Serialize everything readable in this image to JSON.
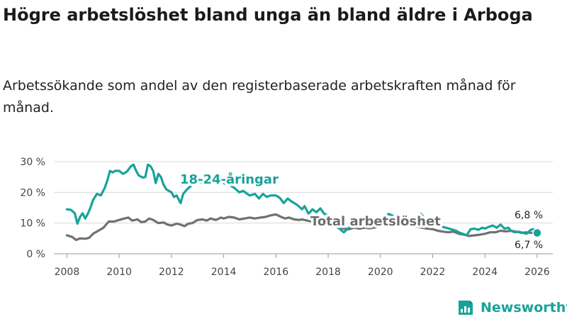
{
  "chart_data": {
    "type": "line",
    "title": "Högre arbetslöshet bland unga än bland äldre i Arboga",
    "subtitle": "Arbetssökande som andel av den registerbaserade arbetskraften månad för månad.",
    "xlabel": "",
    "ylabel": "",
    "xlim": [
      2007.5,
      2026.6
    ],
    "ylim": [
      0,
      33
    ],
    "x_ticks": [
      "2008",
      "2010",
      "2012",
      "2014",
      "2016",
      "2018",
      "2020",
      "2022",
      "2024",
      "2026"
    ],
    "y_ticks": [
      "0 %",
      "10 %",
      "20 %",
      "30 %"
    ],
    "series": [
      {
        "name": "18-24-åringar",
        "label": "18-24-åringar",
        "color": "#17a39a",
        "end_label": "6,8 %",
        "points": [
          [
            2008.0,
            14.5
          ],
          [
            2008.15,
            14.3
          ],
          [
            2008.3,
            13.2
          ],
          [
            2008.4,
            9.8
          ],
          [
            2008.5,
            12.0
          ],
          [
            2008.6,
            13.2
          ],
          [
            2008.7,
            11.5
          ],
          [
            2008.8,
            13.0
          ],
          [
            2008.9,
            15.0
          ],
          [
            2009.0,
            17.5
          ],
          [
            2009.15,
            19.5
          ],
          [
            2009.3,
            19.0
          ],
          [
            2009.45,
            21.5
          ],
          [
            2009.55,
            24.0
          ],
          [
            2009.65,
            27.0
          ],
          [
            2009.75,
            26.5
          ],
          [
            2009.85,
            27.0
          ],
          [
            2010.0,
            27.0
          ],
          [
            2010.15,
            26.0
          ],
          [
            2010.3,
            26.8
          ],
          [
            2010.45,
            28.5
          ],
          [
            2010.55,
            29.0
          ],
          [
            2010.65,
            27.0
          ],
          [
            2010.75,
            25.5
          ],
          [
            2010.9,
            24.8
          ],
          [
            2011.0,
            25.0
          ],
          [
            2011.1,
            29.0
          ],
          [
            2011.2,
            28.5
          ],
          [
            2011.3,
            27.0
          ],
          [
            2011.4,
            23.0
          ],
          [
            2011.5,
            26.0
          ],
          [
            2011.6,
            25.0
          ],
          [
            2011.7,
            22.5
          ],
          [
            2011.8,
            21.0
          ],
          [
            2011.9,
            20.5
          ],
          [
            2012.0,
            20.0
          ],
          [
            2012.1,
            18.5
          ],
          [
            2012.2,
            19.0
          ],
          [
            2012.35,
            16.5
          ],
          [
            2012.45,
            19.5
          ],
          [
            2012.6,
            21.0
          ],
          [
            2012.8,
            22.5
          ],
          [
            2013.0,
            23.5
          ],
          [
            2013.2,
            23.0
          ],
          [
            2013.35,
            25.0
          ],
          [
            2013.5,
            24.5
          ],
          [
            2013.65,
            24.0
          ],
          [
            2013.8,
            25.5
          ],
          [
            2014.0,
            23.0
          ],
          [
            2014.2,
            22.5
          ],
          [
            2014.4,
            21.5
          ],
          [
            2014.6,
            20.0
          ],
          [
            2014.75,
            20.5
          ],
          [
            2014.9,
            19.5
          ],
          [
            2015.0,
            19.0
          ],
          [
            2015.2,
            19.5
          ],
          [
            2015.35,
            18.0
          ],
          [
            2015.5,
            19.5
          ],
          [
            2015.65,
            18.5
          ],
          [
            2015.8,
            19.0
          ],
          [
            2016.0,
            19.0
          ],
          [
            2016.15,
            18.2
          ],
          [
            2016.3,
            16.5
          ],
          [
            2016.45,
            18.0
          ],
          [
            2016.6,
            17.0
          ],
          [
            2016.8,
            16.0
          ],
          [
            2017.0,
            14.5
          ],
          [
            2017.1,
            15.5
          ],
          [
            2017.25,
            13.0
          ],
          [
            2017.4,
            14.5
          ],
          [
            2017.55,
            13.5
          ],
          [
            2017.7,
            14.8
          ],
          [
            2017.85,
            13.0
          ],
          [
            2018.0,
            12.5
          ],
          [
            2018.15,
            11.0
          ],
          [
            2018.3,
            9.5
          ],
          [
            2018.45,
            8.0
          ],
          [
            2018.6,
            7.0
          ],
          [
            2018.8,
            8.5
          ],
          [
            2019.0,
            9.5
          ],
          [
            2019.2,
            10.0
          ],
          [
            2019.4,
            10.5
          ],
          [
            2019.6,
            9.8
          ],
          [
            2019.8,
            10.5
          ],
          [
            2020.0,
            11.0
          ],
          [
            2020.15,
            11.0
          ],
          [
            2020.3,
            13.0
          ],
          [
            2020.45,
            12.5
          ],
          [
            2020.6,
            11.0
          ],
          [
            2020.8,
            10.5
          ],
          [
            2021.0,
            11.5
          ],
          [
            2021.2,
            10.5
          ],
          [
            2021.4,
            11.0
          ],
          [
            2021.55,
            13.0
          ],
          [
            2021.7,
            11.5
          ],
          [
            2021.85,
            10.8
          ],
          [
            2022.0,
            10.0
          ],
          [
            2022.15,
            9.5
          ],
          [
            2022.3,
            9.0
          ],
          [
            2022.5,
            8.5
          ],
          [
            2022.7,
            8.0
          ],
          [
            2022.9,
            7.5
          ],
          [
            2023.0,
            7.0
          ],
          [
            2023.15,
            6.5
          ],
          [
            2023.3,
            6.0
          ],
          [
            2023.45,
            8.0
          ],
          [
            2023.6,
            8.2
          ],
          [
            2023.75,
            7.8
          ],
          [
            2023.9,
            8.5
          ],
          [
            2024.0,
            8.2
          ],
          [
            2024.15,
            8.8
          ],
          [
            2024.3,
            9.2
          ],
          [
            2024.45,
            8.5
          ],
          [
            2024.6,
            9.5
          ],
          [
            2024.75,
            8.2
          ],
          [
            2024.9,
            8.5
          ],
          [
            2025.0,
            7.5
          ],
          [
            2025.15,
            7.0
          ],
          [
            2025.3,
            7.2
          ],
          [
            2025.45,
            6.8
          ],
          [
            2025.6,
            6.5
          ],
          [
            2025.75,
            7.8
          ],
          [
            2025.85,
            8.0
          ],
          [
            2026.0,
            6.8
          ]
        ]
      },
      {
        "name": "Total arbetslöshet",
        "label": "Total arbetslöshet",
        "color": "#707070",
        "end_label": "6,7 %",
        "points": [
          [
            2008.0,
            6.0
          ],
          [
            2008.2,
            5.5
          ],
          [
            2008.35,
            4.5
          ],
          [
            2008.5,
            5.0
          ],
          [
            2008.7,
            4.9
          ],
          [
            2008.85,
            5.2
          ],
          [
            2009.0,
            6.5
          ],
          [
            2009.2,
            7.5
          ],
          [
            2009.4,
            8.5
          ],
          [
            2009.6,
            10.5
          ],
          [
            2009.8,
            10.5
          ],
          [
            2010.0,
            11.0
          ],
          [
            2010.2,
            11.5
          ],
          [
            2010.35,
            11.8
          ],
          [
            2010.5,
            10.8
          ],
          [
            2010.7,
            11.2
          ],
          [
            2010.85,
            10.3
          ],
          [
            2011.0,
            10.5
          ],
          [
            2011.15,
            11.5
          ],
          [
            2011.3,
            11.0
          ],
          [
            2011.5,
            10.0
          ],
          [
            2011.7,
            10.2
          ],
          [
            2011.85,
            9.5
          ],
          [
            2012.0,
            9.2
          ],
          [
            2012.2,
            9.8
          ],
          [
            2012.35,
            9.5
          ],
          [
            2012.5,
            9.0
          ],
          [
            2012.65,
            9.8
          ],
          [
            2012.8,
            10.0
          ],
          [
            2013.0,
            11.0
          ],
          [
            2013.2,
            11.2
          ],
          [
            2013.35,
            10.8
          ],
          [
            2013.5,
            11.5
          ],
          [
            2013.7,
            11.0
          ],
          [
            2013.9,
            11.8
          ],
          [
            2014.0,
            11.5
          ],
          [
            2014.2,
            12.0
          ],
          [
            2014.4,
            11.8
          ],
          [
            2014.6,
            11.2
          ],
          [
            2014.8,
            11.5
          ],
          [
            2015.0,
            11.8
          ],
          [
            2015.2,
            11.5
          ],
          [
            2015.4,
            11.8
          ],
          [
            2015.6,
            12.0
          ],
          [
            2015.8,
            12.5
          ],
          [
            2016.0,
            12.8
          ],
          [
            2016.2,
            12.0
          ],
          [
            2016.35,
            11.5
          ],
          [
            2016.5,
            11.8
          ],
          [
            2016.7,
            11.2
          ],
          [
            2016.9,
            11.0
          ],
          [
            2017.0,
            11.2
          ],
          [
            2017.2,
            10.8
          ],
          [
            2017.4,
            10.5
          ],
          [
            2017.6,
            10.0
          ],
          [
            2017.8,
            9.8
          ],
          [
            2018.0,
            9.5
          ],
          [
            2018.2,
            9.0
          ],
          [
            2018.4,
            8.5
          ],
          [
            2018.6,
            8.2
          ],
          [
            2018.8,
            8.0
          ],
          [
            2019.0,
            8.5
          ],
          [
            2019.2,
            8.2
          ],
          [
            2019.4,
            8.5
          ],
          [
            2019.6,
            8.3
          ],
          [
            2019.8,
            8.6
          ],
          [
            2020.0,
            9.0
          ],
          [
            2020.2,
            9.5
          ],
          [
            2020.4,
            10.0
          ],
          [
            2020.6,
            9.5
          ],
          [
            2020.8,
            9.2
          ],
          [
            2021.0,
            9.5
          ],
          [
            2021.2,
            9.0
          ],
          [
            2021.4,
            8.8
          ],
          [
            2021.6,
            8.5
          ],
          [
            2021.8,
            8.2
          ],
          [
            2022.0,
            8.0
          ],
          [
            2022.2,
            7.5
          ],
          [
            2022.4,
            7.2
          ],
          [
            2022.6,
            7.0
          ],
          [
            2022.8,
            7.2
          ],
          [
            2023.0,
            6.5
          ],
          [
            2023.2,
            6.2
          ],
          [
            2023.4,
            5.8
          ],
          [
            2023.6,
            6.0
          ],
          [
            2023.8,
            6.2
          ],
          [
            2024.0,
            6.5
          ],
          [
            2024.2,
            7.0
          ],
          [
            2024.4,
            7.0
          ],
          [
            2024.6,
            7.5
          ],
          [
            2024.8,
            7.3
          ],
          [
            2025.0,
            7.5
          ],
          [
            2025.2,
            7.2
          ],
          [
            2025.4,
            6.8
          ],
          [
            2025.6,
            7.0
          ],
          [
            2025.8,
            6.8
          ],
          [
            2026.0,
            6.7
          ]
        ]
      }
    ]
  },
  "brand": {
    "name": "Newsworthy"
  }
}
